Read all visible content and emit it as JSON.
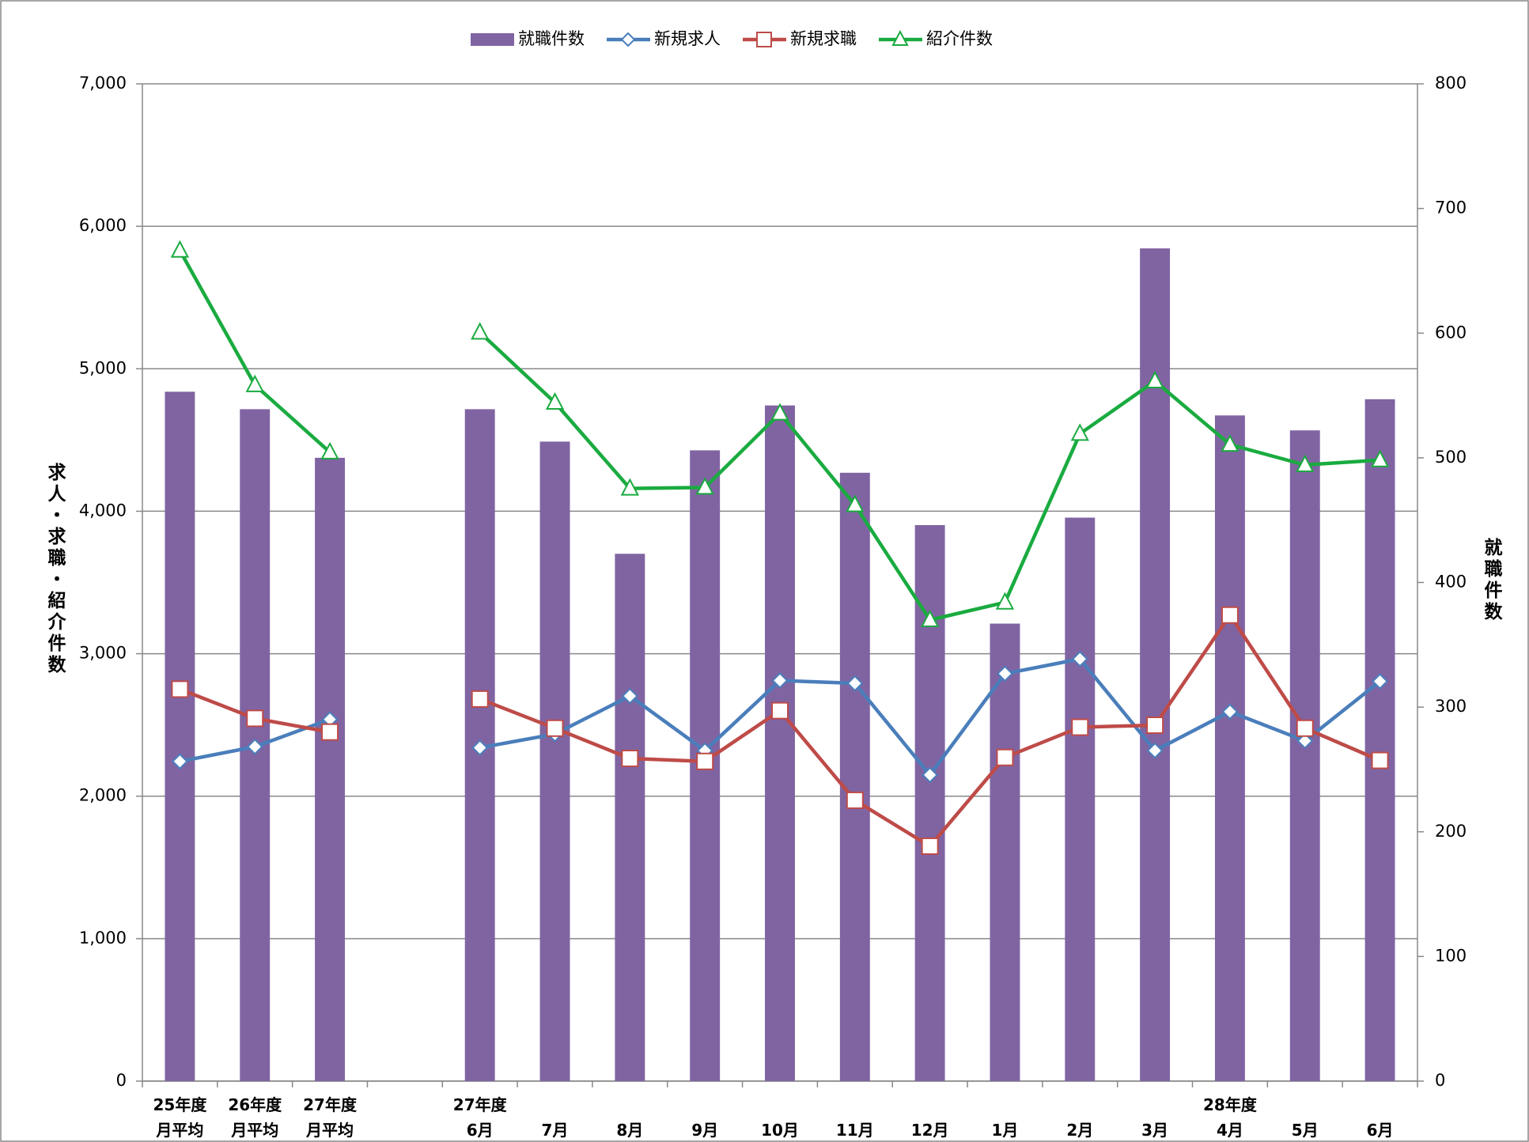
{
  "chart_data": {
    "type": "bar-line",
    "y_label": "求人・求職・紹介件数",
    "y2_label": "就職件数",
    "categories": [
      "25年度\n月平均",
      "26年度\n月平均",
      "27年度\n月平均",
      null,
      "27年度\n6月",
      "7月",
      "8月",
      "9月",
      "10月",
      "11月",
      "12月",
      "1月",
      "2月",
      "3月",
      "28年度\n4月",
      "5月",
      "6月"
    ],
    "series": [
      {
        "name": "就職件数",
        "type": "bar",
        "axis": "y2",
        "color": "#8064a2",
        "values": [
          553,
          539,
          500,
          null,
          539,
          513,
          423,
          506,
          542,
          488,
          446,
          367,
          452,
          668,
          534,
          522,
          547
        ]
      },
      {
        "name": "新規求人",
        "type": "line",
        "marker": "diamond",
        "color": "#4a7ebb",
        "values": [
          2244,
          2347,
          2539,
          null,
          2340,
          2436,
          2703,
          2320,
          2812,
          2792,
          2149,
          2860,
          2963,
          2320,
          2593,
          2388,
          2806
        ]
      },
      {
        "name": "新規求職",
        "type": "line",
        "marker": "square",
        "color": "#be4b48",
        "values": [
          2751,
          2546,
          2450,
          null,
          2682,
          2477,
          2265,
          2244,
          2600,
          1971,
          1649,
          2272,
          2484,
          2498,
          3271,
          2477,
          2251
        ]
      },
      {
        "name": "紹介件数",
        "type": "line",
        "marker": "triangle",
        "color": "#1aab40",
        "values": [
          5830,
          4886,
          4414,
          null,
          5255,
          4763,
          4160,
          4167,
          4687,
          4044,
          3237,
          3360,
          4544,
          4913,
          4468,
          4325,
          4359
        ]
      }
    ],
    "ylim": [
      0,
      7000
    ],
    "yticks": [
      0,
      {
        "value": 1000,
        "label": "1,000"
      },
      {
        "value": 2000,
        "label": "2,000"
      },
      {
        "value": 3000,
        "label": "3,000"
      },
      {
        "value": 4000,
        "label": "4,000"
      },
      {
        "value": 5000,
        "label": "5,000"
      },
      {
        "value": 6000,
        "label": "6,000"
      },
      {
        "value": 7000,
        "label": "7,000"
      }
    ],
    "y2lim": [
      0,
      800
    ],
    "y2ticks": [
      0,
      100,
      200,
      300,
      400,
      500,
      600,
      700,
      800
    ],
    "grid": true,
    "legend": "top"
  }
}
